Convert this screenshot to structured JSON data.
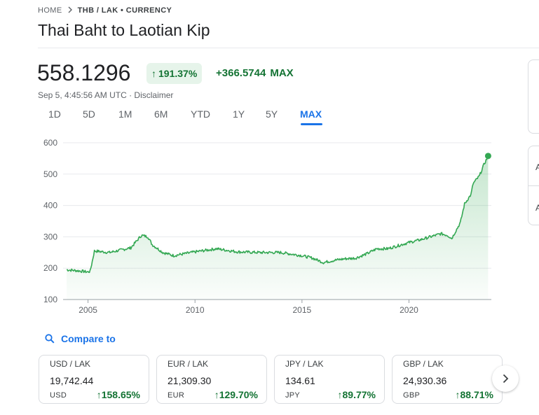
{
  "breadcrumb": {
    "home": "HOME",
    "current": "THB / LAK • CURRENCY"
  },
  "title": "Thai Baht to Laotian Kip",
  "quote": {
    "price": "558.1296",
    "percent_change": "191.37%",
    "absolute_change": "+366.5744",
    "period": "MAX",
    "timestamp": "Sep 5, 4:45:56 AM UTC · Disclaimer"
  },
  "tabs": [
    {
      "label": "1D",
      "active": false
    },
    {
      "label": "5D",
      "active": false
    },
    {
      "label": "1M",
      "active": false
    },
    {
      "label": "6M",
      "active": false
    },
    {
      "label": "YTD",
      "active": false
    },
    {
      "label": "1Y",
      "active": false
    },
    {
      "label": "5Y",
      "active": false
    },
    {
      "label": "MAX",
      "active": true
    }
  ],
  "chart_data": {
    "type": "area",
    "xlabel": "",
    "ylabel": "",
    "ylim": [
      100,
      600
    ],
    "y_ticks": [
      "600",
      "500",
      "400",
      "300",
      "200",
      "100"
    ],
    "x_ticks": [
      "2005",
      "2010",
      "2015",
      "2020"
    ],
    "grid": true,
    "line_color": "#34a853",
    "series": [
      {
        "x": [
          2004.0,
          2004.5,
          2005.0,
          2005.1,
          2005.3,
          2006.0,
          2007.0,
          2007.5,
          2007.8,
          2008.0,
          2008.5,
          2009.0,
          2010.0,
          2011.0,
          2012.0,
          2013.0,
          2014.0,
          2015.0,
          2015.5,
          2016.0,
          2016.5,
          2017.0,
          2017.5,
          2018.0,
          2018.5,
          2019.0,
          2019.5,
          2020.0,
          2020.5,
          2021.0,
          2021.5,
          2021.8,
          2022.0,
          2022.4,
          2022.6,
          2022.9,
          2023.0,
          2023.3,
          2023.5,
          2023.7
        ],
        "y": [
          195,
          192,
          188,
          190,
          255,
          250,
          265,
          305,
          300,
          275,
          250,
          240,
          252,
          262,
          252,
          250,
          250,
          240,
          232,
          218,
          225,
          230,
          232,
          245,
          262,
          262,
          272,
          282,
          290,
          300,
          310,
          305,
          295,
          345,
          405,
          435,
          470,
          495,
          530,
          558
        ]
      }
    ],
    "last_point": {
      "x": 2023.7,
      "y": 558
    }
  },
  "compare": {
    "label": "Compare to"
  },
  "cards": [
    {
      "pair": "USD / LAK",
      "rate": "19,742.44",
      "code": "USD",
      "change": "158.65%"
    },
    {
      "pair": "EUR / LAK",
      "rate": "21,309.30",
      "code": "EUR",
      "change": "129.70%"
    },
    {
      "pair": "JPY / LAK",
      "rate": "134.61",
      "code": "JPY",
      "change": "89.77%"
    },
    {
      "pair": "GBP / LAK",
      "rate": "24,930.36",
      "code": "GBP",
      "change": "88.71%"
    }
  ],
  "side": {
    "letter": "A"
  },
  "colors": {
    "positive": "#137333",
    "accent": "#1a73e8",
    "badge_bg": "#e6f4ea"
  },
  "icons": {
    "breadcrumb_sep": "chevron-right-icon",
    "compare": "search-icon",
    "next": "chevron-right-icon",
    "up": "arrow-up-icon"
  }
}
